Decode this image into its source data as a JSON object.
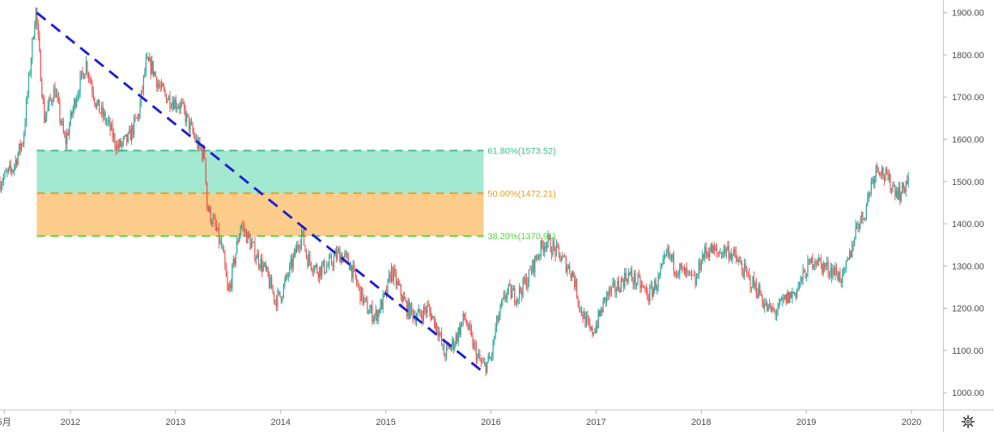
{
  "chart_data": {
    "type": "candlestick",
    "x_axis": {
      "ticks": [
        "5月",
        "2012",
        "2013",
        "2014",
        "2015",
        "2016",
        "2017",
        "2018",
        "2019",
        "2020"
      ],
      "range": [
        2011.33,
        2020.3
      ]
    },
    "y_axis": {
      "ticks": [
        "1000.00",
        "1100.00",
        "1200.00",
        "1300.00",
        "1400.00",
        "1500.00",
        "1600.00",
        "1700.00",
        "1800.00",
        "1900.00"
      ],
      "range": [
        960,
        1930
      ],
      "position": "right"
    },
    "price_path": [
      [
        2011.33,
        1500
      ],
      [
        2011.45,
        1530
      ],
      [
        2011.55,
        1600
      ],
      [
        2011.62,
        1780
      ],
      [
        2011.67,
        1910
      ],
      [
        2011.75,
        1650
      ],
      [
        2011.85,
        1720
      ],
      [
        2011.95,
        1590
      ],
      [
        2012.05,
        1700
      ],
      [
        2012.15,
        1780
      ],
      [
        2012.25,
        1680
      ],
      [
        2012.35,
        1640
      ],
      [
        2012.45,
        1580
      ],
      [
        2012.55,
        1600
      ],
      [
        2012.65,
        1660
      ],
      [
        2012.72,
        1780
      ],
      [
        2012.78,
        1770
      ],
      [
        2012.85,
        1720
      ],
      [
        2012.92,
        1700
      ],
      [
        2013.05,
        1680
      ],
      [
        2013.12,
        1640
      ],
      [
        2013.22,
        1580
      ],
      [
        2013.28,
        1560
      ],
      [
        2013.3,
        1440
      ],
      [
        2013.38,
        1390
      ],
      [
        2013.45,
        1330
      ],
      [
        2013.5,
        1230
      ],
      [
        2013.55,
        1300
      ],
      [
        2013.62,
        1400
      ],
      [
        2013.7,
        1360
      ],
      [
        2013.78,
        1320
      ],
      [
        2013.85,
        1290
      ],
      [
        2013.95,
        1220
      ],
      [
        2014.0,
        1230
      ],
      [
        2014.1,
        1300
      ],
      [
        2014.2,
        1380
      ],
      [
        2014.25,
        1320
      ],
      [
        2014.35,
        1290
      ],
      [
        2014.45,
        1300
      ],
      [
        2014.55,
        1330
      ],
      [
        2014.65,
        1310
      ],
      [
        2014.75,
        1240
      ],
      [
        2014.82,
        1200
      ],
      [
        2014.9,
        1180
      ],
      [
        2015.0,
        1230
      ],
      [
        2015.05,
        1290
      ],
      [
        2015.1,
        1260
      ],
      [
        2015.2,
        1200
      ],
      [
        2015.3,
        1180
      ],
      [
        2015.4,
        1200
      ],
      [
        2015.5,
        1150
      ],
      [
        2015.55,
        1090
      ],
      [
        2015.65,
        1120
      ],
      [
        2015.75,
        1180
      ],
      [
        2015.82,
        1120
      ],
      [
        2015.88,
        1080
      ],
      [
        2015.93,
        1060
      ],
      [
        2016.0,
        1080
      ],
      [
        2016.05,
        1160
      ],
      [
        2016.15,
        1240
      ],
      [
        2016.25,
        1230
      ],
      [
        2016.35,
        1270
      ],
      [
        2016.45,
        1330
      ],
      [
        2016.52,
        1360
      ],
      [
        2016.6,
        1340
      ],
      [
        2016.7,
        1310
      ],
      [
        2016.78,
        1280
      ],
      [
        2016.85,
        1200
      ],
      [
        2016.95,
        1140
      ],
      [
        2017.0,
        1160
      ],
      [
        2017.1,
        1230
      ],
      [
        2017.2,
        1250
      ],
      [
        2017.3,
        1280
      ],
      [
        2017.4,
        1260
      ],
      [
        2017.5,
        1230
      ],
      [
        2017.6,
        1270
      ],
      [
        2017.68,
        1330
      ],
      [
        2017.75,
        1300
      ],
      [
        2017.85,
        1280
      ],
      [
        2017.95,
        1260
      ],
      [
        2018.0,
        1320
      ],
      [
        2018.08,
        1340
      ],
      [
        2018.15,
        1330
      ],
      [
        2018.25,
        1340
      ],
      [
        2018.35,
        1310
      ],
      [
        2018.45,
        1270
      ],
      [
        2018.55,
        1240
      ],
      [
        2018.62,
        1200
      ],
      [
        2018.7,
        1190
      ],
      [
        2018.8,
        1220
      ],
      [
        2018.9,
        1240
      ],
      [
        2019.0,
        1290
      ],
      [
        2019.08,
        1320
      ],
      [
        2019.15,
        1300
      ],
      [
        2019.25,
        1290
      ],
      [
        2019.35,
        1270
      ],
      [
        2019.42,
        1330
      ],
      [
        2019.48,
        1400
      ],
      [
        2019.55,
        1420
      ],
      [
        2019.62,
        1500
      ],
      [
        2019.68,
        1540
      ],
      [
        2019.75,
        1510
      ],
      [
        2019.82,
        1490
      ],
      [
        2019.9,
        1470
      ],
      [
        2019.97,
        1510
      ]
    ],
    "trendline": {
      "from": [
        2011.68,
        1900
      ],
      "to": [
        2015.93,
        1048
      ],
      "color": "#1f1fd6",
      "style": "dashed"
    },
    "fibonacci": {
      "x_range": [
        2011.68,
        2015.93
      ],
      "levels": [
        {
          "ratio": "61.80%",
          "value": 1573.52,
          "label": "61.80%(1573.52)",
          "color": "#3fbf8f"
        },
        {
          "ratio": "50.00%",
          "value": 1472.21,
          "label": "50.00%(1472.21)",
          "color": "#e8a020"
        },
        {
          "ratio": "38.20%",
          "value": 1370.91,
          "label": "38.20%(1370.91)",
          "color": "#55d640"
        }
      ],
      "fills": [
        "#a3e8d0",
        "#fccc8a"
      ]
    },
    "candle_colors": {
      "up": "#26a69a",
      "down": "#ef5350"
    },
    "grid": false,
    "legend": "none"
  },
  "ui": {
    "settings_icon": "gear-icon"
  }
}
